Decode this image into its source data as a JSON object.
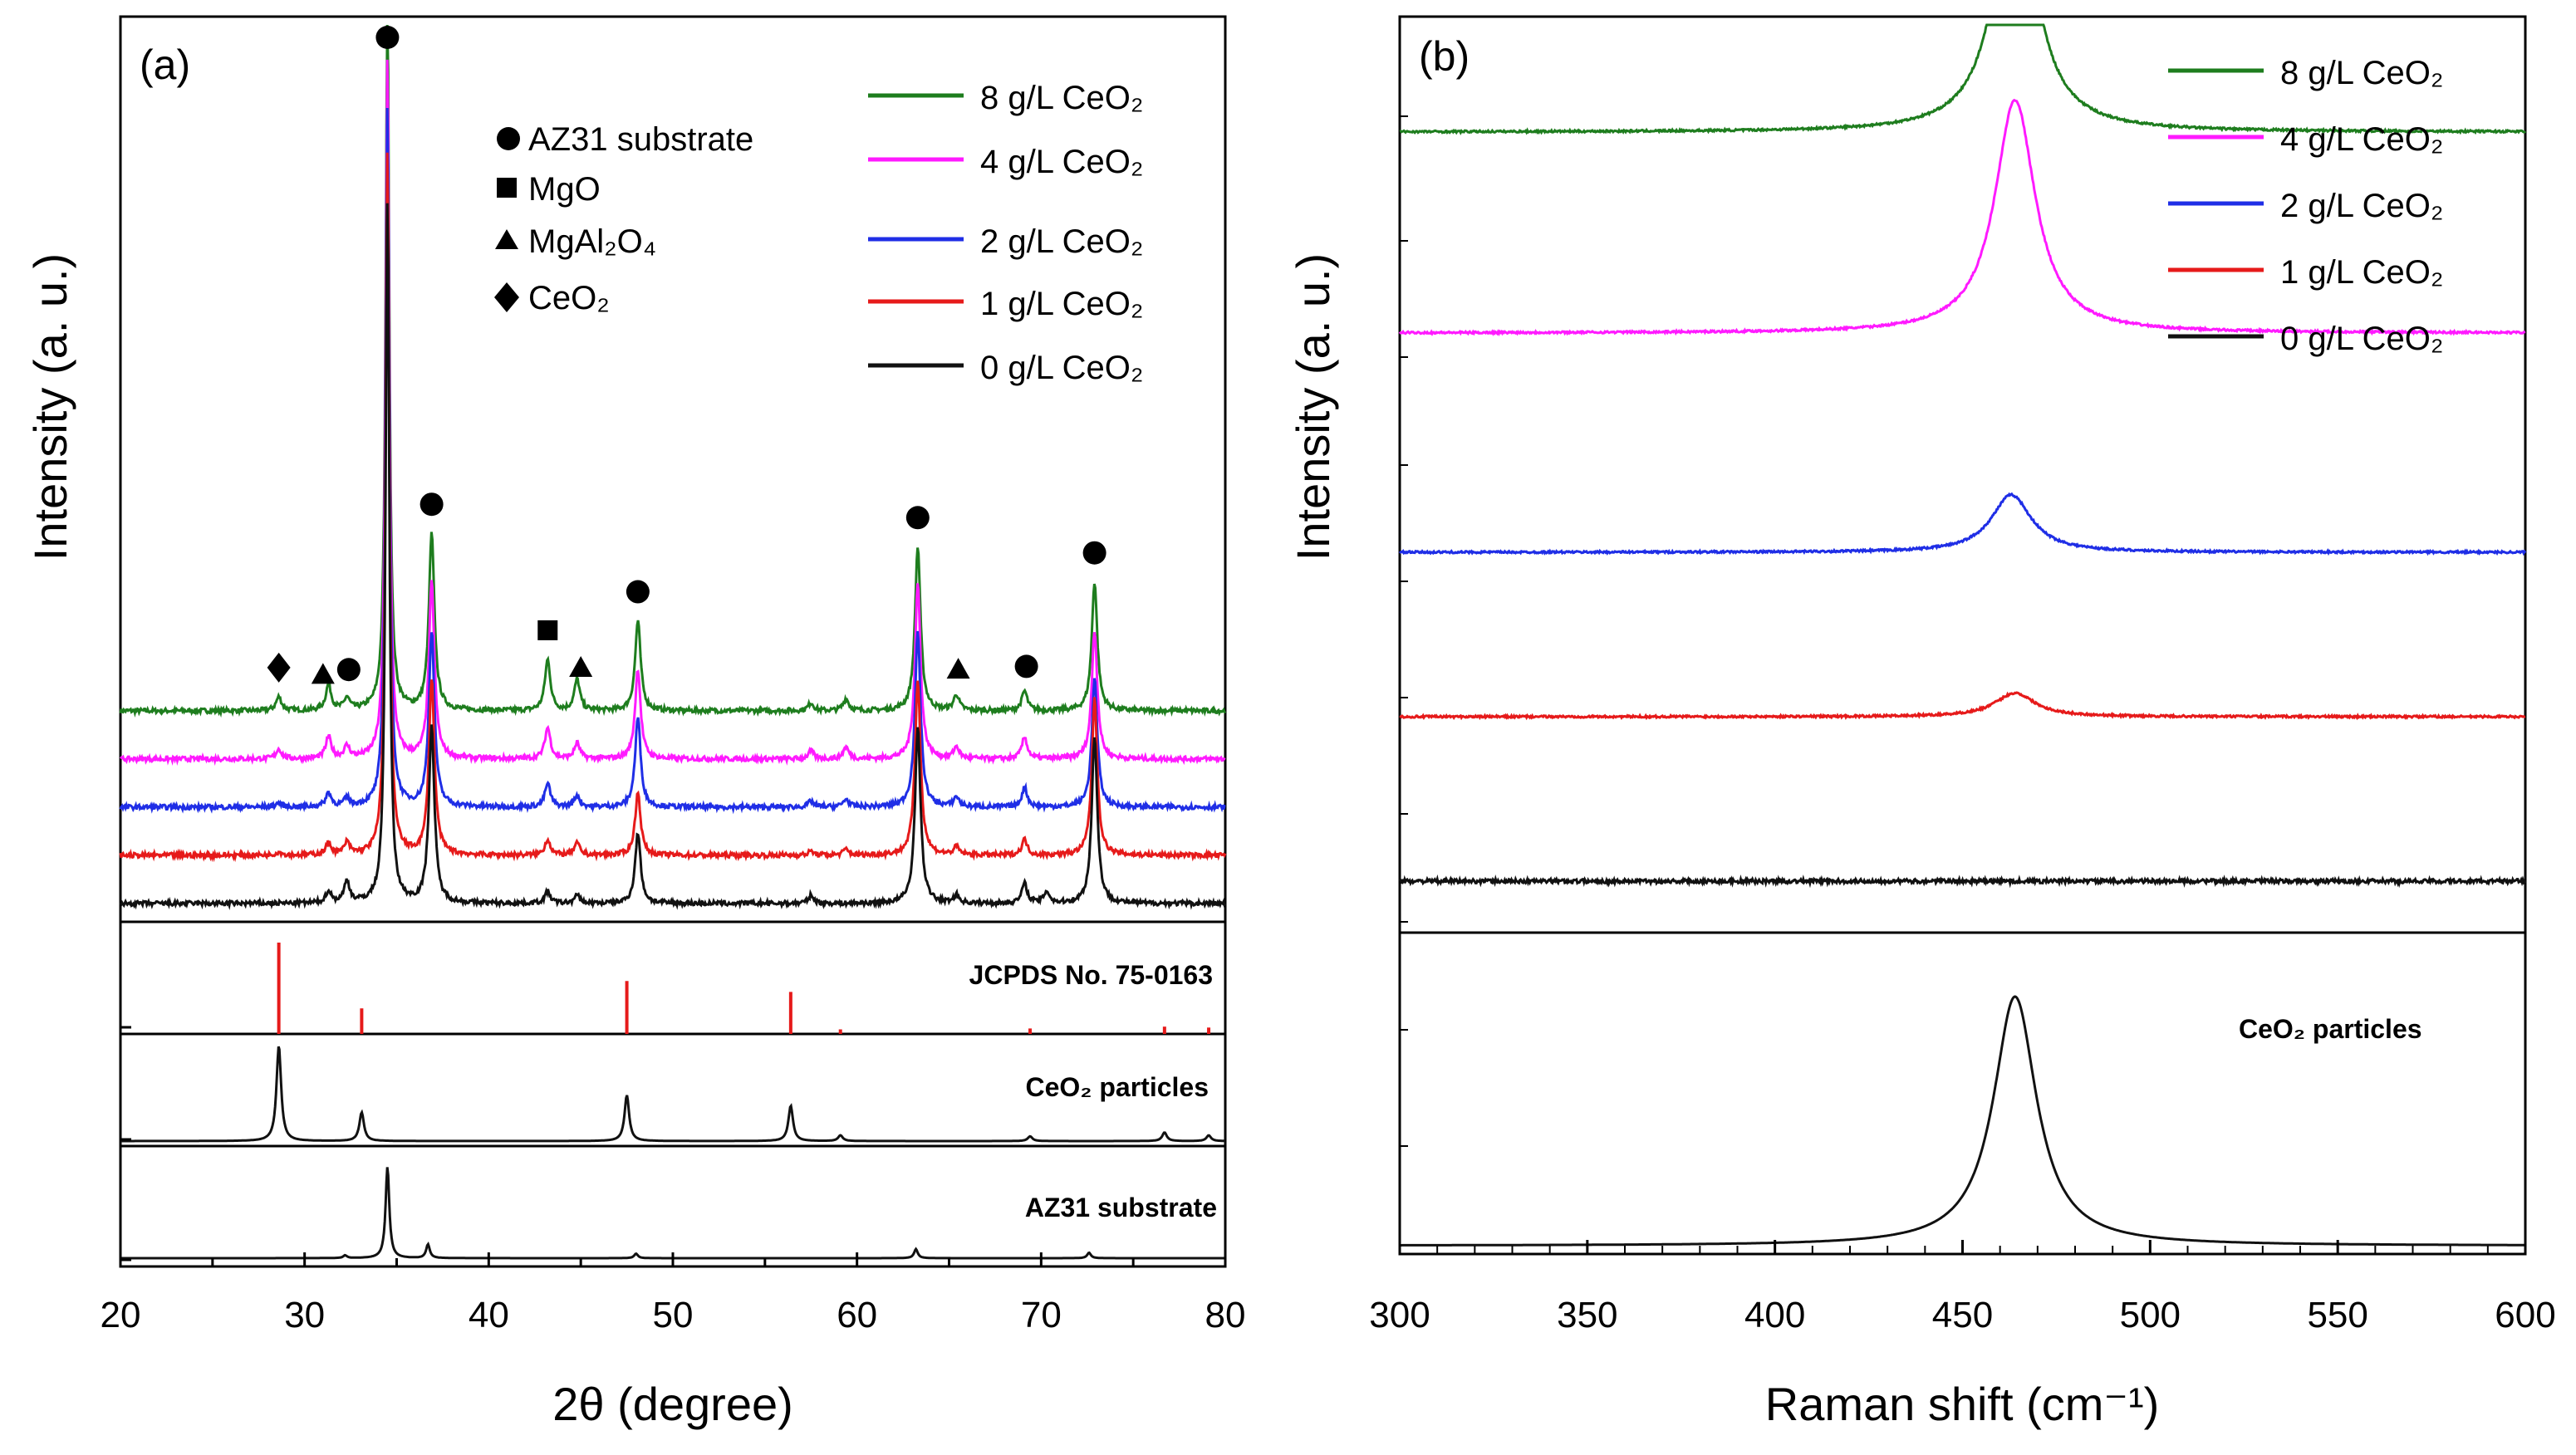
{
  "chart_data": [
    {
      "panel": "a",
      "type": "line",
      "panel_label": "(a)",
      "xlabel": "2θ (degree)",
      "ylabel": "Intensity (a. u.)",
      "xlim": [
        20,
        80
      ],
      "xticks": [
        "20",
        "30",
        "40",
        "50",
        "60",
        "70",
        "80"
      ],
      "legend_position": "top-right",
      "series": [
        {
          "name": "8 g/L CeO₂",
          "color": "#1e7d1e",
          "baseline": 0.8,
          "peaks": [
            [
              28.6,
              0.35
            ],
            [
              31.3,
              0.65
            ],
            [
              32.3,
              0.3
            ],
            [
              34.5,
              18
            ],
            [
              36.9,
              4.5
            ],
            [
              43.2,
              1.3
            ],
            [
              44.8,
              0.8
            ],
            [
              48.1,
              2.3
            ],
            [
              57.5,
              0.2
            ],
            [
              59.4,
              0.3
            ],
            [
              63.3,
              4.2
            ],
            [
              65.4,
              0.4
            ],
            [
              69.1,
              0.5
            ],
            [
              72.9,
              3.3
            ]
          ]
        },
        {
          "name": "4 g/L CeO₂",
          "color": "#ff1aff",
          "baseline": 0.62,
          "peaks": [
            [
              28.6,
              0.25
            ],
            [
              31.3,
              0.55
            ],
            [
              32.3,
              0.3
            ],
            [
              34.5,
              18
            ],
            [
              36.9,
              4.5
            ],
            [
              43.2,
              0.8
            ],
            [
              44.8,
              0.4
            ],
            [
              48.1,
              2.3
            ],
            [
              57.5,
              0.2
            ],
            [
              59.4,
              0.3
            ],
            [
              63.3,
              4.5
            ],
            [
              65.4,
              0.3
            ],
            [
              69.1,
              0.55
            ],
            [
              72.9,
              3.3
            ]
          ]
        },
        {
          "name": "2 g/L CeO₂",
          "color": "#1f2ee6",
          "baseline": 0.44,
          "peaks": [
            [
              28.6,
              0.1
            ],
            [
              31.3,
              0.35
            ],
            [
              32.3,
              0.2
            ],
            [
              34.5,
              18
            ],
            [
              36.9,
              4.5
            ],
            [
              43.2,
              0.6
            ],
            [
              44.8,
              0.3
            ],
            [
              48.1,
              2.3
            ],
            [
              57.5,
              0.15
            ],
            [
              59.4,
              0.2
            ],
            [
              63.3,
              4.5
            ],
            [
              65.4,
              0.25
            ],
            [
              69.1,
              0.5
            ],
            [
              72.9,
              3.3
            ]
          ]
        },
        {
          "name": "1 g/L CeO₂",
          "color": "#e61a1a",
          "baseline": 0.26,
          "peaks": [
            [
              28.6,
              0.08
            ],
            [
              31.3,
              0.3
            ],
            [
              32.3,
              0.3
            ],
            [
              34.5,
              18
            ],
            [
              36.9,
              4.5
            ],
            [
              43.2,
              0.4
            ],
            [
              44.8,
              0.3
            ],
            [
              48.1,
              1.6
            ],
            [
              57.5,
              0.1
            ],
            [
              59.4,
              0.15
            ],
            [
              63.3,
              4.5
            ],
            [
              65.4,
              0.2
            ],
            [
              69.1,
              0.4
            ],
            [
              72.9,
              4.0
            ]
          ]
        },
        {
          "name": "0 g/L CeO₂",
          "color": "#111111",
          "baseline": 0.06,
          "peaks": [
            [
              31.3,
              0.3
            ],
            [
              32.3,
              0.55
            ],
            [
              34.5,
              18
            ],
            [
              36.9,
              4.5
            ],
            [
              43.2,
              0.3
            ],
            [
              44.8,
              0.2
            ],
            [
              48.1,
              1.8
            ],
            [
              57.5,
              0.2
            ],
            [
              63.3,
              4.5
            ],
            [
              65.4,
              0.2
            ],
            [
              69.1,
              0.5
            ],
            [
              70.3,
              0.3
            ],
            [
              72.9,
              4.3
            ]
          ]
        }
      ],
      "markers": [
        {
          "symbol": "diamond",
          "x": 28.6
        },
        {
          "symbol": "triangle",
          "x": 31.0
        },
        {
          "symbol": "circle",
          "x": 32.4
        },
        {
          "symbol": "circle",
          "x": 34.5
        },
        {
          "symbol": "circle",
          "x": 36.9
        },
        {
          "symbol": "square",
          "x": 43.2
        },
        {
          "symbol": "triangle",
          "x": 45.0
        },
        {
          "symbol": "circle",
          "x": 48.1
        },
        {
          "symbol": "circle",
          "x": 63.3
        },
        {
          "symbol": "triangle",
          "x": 65.5
        },
        {
          "symbol": "circle",
          "x": 69.2
        },
        {
          "symbol": "circle",
          "x": 72.9
        }
      ],
      "phase_legend": [
        {
          "symbol": "circle",
          "label": "AZ31 substrate"
        },
        {
          "symbol": "square",
          "label": "MgO"
        },
        {
          "symbol": "triangle",
          "label": "MgAl₂O₄"
        },
        {
          "symbol": "diamond",
          "label": "CeO₂"
        }
      ],
      "reference_jcpds": {
        "label": "JCPDS No. 75-0163",
        "color": "#e61a1a",
        "lines": [
          [
            28.6,
            1.0
          ],
          [
            33.1,
            0.28
          ],
          [
            47.5,
            0.58
          ],
          [
            56.4,
            0.46
          ],
          [
            59.1,
            0.05
          ],
          [
            69.4,
            0.06
          ],
          [
            76.7,
            0.08
          ],
          [
            79.1,
            0.07
          ]
        ]
      },
      "reference_ceo2": {
        "label": "CeO₂ particles",
        "peaks": [
          [
            28.6,
            1.0
          ],
          [
            33.1,
            0.3
          ],
          [
            47.5,
            0.48
          ],
          [
            56.4,
            0.37
          ],
          [
            59.1,
            0.06
          ],
          [
            69.4,
            0.05
          ],
          [
            76.7,
            0.09
          ],
          [
            79.1,
            0.06
          ]
        ]
      },
      "reference_az31": {
        "label": "AZ31 substrate",
        "peaks": [
          [
            32.2,
            0.03
          ],
          [
            34.5,
            1.0
          ],
          [
            36.7,
            0.15
          ],
          [
            48.0,
            0.05
          ],
          [
            63.2,
            0.1
          ],
          [
            72.6,
            0.06
          ]
        ]
      }
    },
    {
      "panel": "b",
      "type": "line",
      "panel_label": "(b)",
      "xlabel": "Raman shift (cm⁻¹)",
      "ylabel": "Intensity (a. u.)",
      "xlim": [
        300,
        600
      ],
      "xticks": [
        "300",
        "350",
        "400",
        "450",
        "500",
        "550",
        "600"
      ],
      "legend_position": "top-right",
      "series": [
        {
          "name": "8 g/L CeO₂",
          "color": "#1e7d1e",
          "baseline": 0.86,
          "peak": 464,
          "height": 0.75
        },
        {
          "name": "4 g/L CeO₂",
          "color": "#ff1aff",
          "baseline": 0.64,
          "peak": 464,
          "height": 0.69
        },
        {
          "name": "2 g/L CeO₂",
          "color": "#1f2ee6",
          "baseline": 0.4,
          "peak": 463,
          "height": 0.17
        },
        {
          "name": "1 g/L CeO₂",
          "color": "#e61a1a",
          "baseline": 0.22,
          "peak": 464,
          "height": 0.07
        },
        {
          "name": "0 g/L CeO₂",
          "color": "#111111",
          "baseline": 0.04,
          "peak": 464,
          "height": 0.0
        }
      ],
      "reference": {
        "label": "CeO₂ particles",
        "peak": 464,
        "height": 1.0
      }
    }
  ]
}
